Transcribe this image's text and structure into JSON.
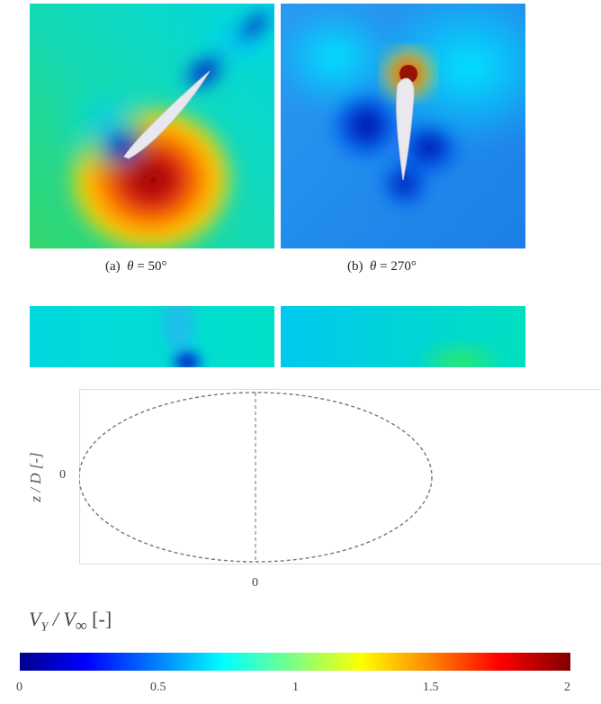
{
  "panels": [
    {
      "label": "(a)",
      "theta_symbol": "θ",
      "equals": "=",
      "value": "50°"
    },
    {
      "label": "(b)",
      "theta_symbol": "θ",
      "equals": "=",
      "value": "270°"
    }
  ],
  "bottom_plot": {
    "ylabel": "z / D [-]",
    "y_tick": "0",
    "x_tick": "0"
  },
  "colorbar": {
    "title_main": "V",
    "title_sub": "Y",
    "title_slash": "/",
    "title_main2": "V",
    "title_sub2": "∞",
    "title_unit": "[-]",
    "ticks": [
      "0",
      "0.5",
      "1",
      "1.5",
      "2"
    ]
  }
}
